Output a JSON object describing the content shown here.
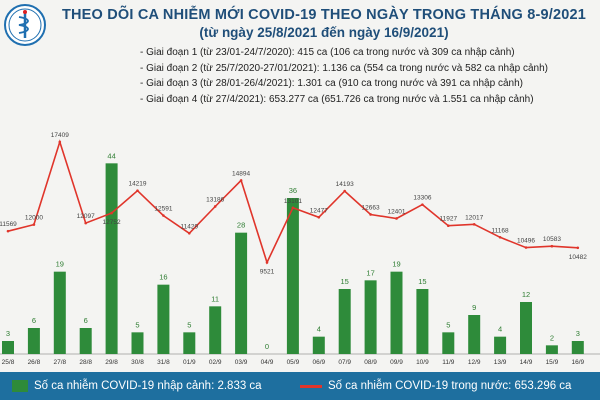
{
  "title": "THEO DÕI CA NHIỄM MỚI COVID-19 THEO NGÀY TRONG THÁNG 8-9/2021",
  "subtitle": "(từ ngày 25/8/2021 đến ngày 16/9/2021)",
  "phases": [
    "- Giai đoạn 1 (từ 23/01-24/7/2020): 415 ca (106 ca trong nước và 309 ca nhập cảnh)",
    "- Giai đoạn 2 (từ 25/7/2020-27/01/2021): 1.136 ca (554 ca trong nước và 582 ca nhập cảnh)",
    "- Giai đoạn 3 (từ 28/01-26/4/2021): 1.301 ca (910 ca trong nước và 391 ca nhập cảnh)",
    "- Giai đoạn 4 (từ 27/4/2021): 653.277 ca (651.726 ca trong nước và 1.551 ca nhập cảnh)"
  ],
  "legend": {
    "imported": "Số ca nhiễm COVID-19 nhập cảnh: 2.833 ca",
    "domestic": "Số ca nhiễm COVID-19 trong nước: 653.296 ca"
  },
  "colors": {
    "bar": "#2e8b3a",
    "line": "#e0352b",
    "title": "#1f4e79",
    "legend_background": "#1e6f9f"
  },
  "chart_data": {
    "type": "bar",
    "categories": [
      "25/8",
      "26/8",
      "27/8",
      "28/8",
      "29/8",
      "30/8",
      "31/8",
      "01/9",
      "02/9",
      "03/9",
      "04/9",
      "05/9",
      "06/9",
      "07/9",
      "08/9",
      "09/9",
      "10/9",
      "11/9",
      "12/9",
      "13/9",
      "14/9",
      "15/9",
      "16/9"
    ],
    "series": [
      {
        "name": "Số ca nhiễm COVID-19 nhập cảnh: 2.833 ca",
        "type": "bar",
        "values": [
          3,
          6,
          19,
          6,
          44,
          5,
          16,
          5,
          11,
          28,
          0,
          36,
          4,
          15,
          17,
          19,
          15,
          5,
          9,
          4,
          12,
          2,
          3
        ]
      },
      {
        "name": "Số ca nhiễm COVID-19 trong nước: 653.296 ca",
        "type": "line",
        "values": [
          11569,
          12000,
          17409,
          12097,
          12752,
          14219,
          12591,
          11429,
          13186,
          14894,
          9521,
          13101,
          12477,
          14193,
          12663,
          12401,
          13306,
          11927,
          12017,
          11168,
          10496,
          10583,
          10482
        ]
      }
    ],
    "bar_ylim": [
      0,
      52
    ],
    "line_ylim": [
      5000,
      19500
    ]
  }
}
